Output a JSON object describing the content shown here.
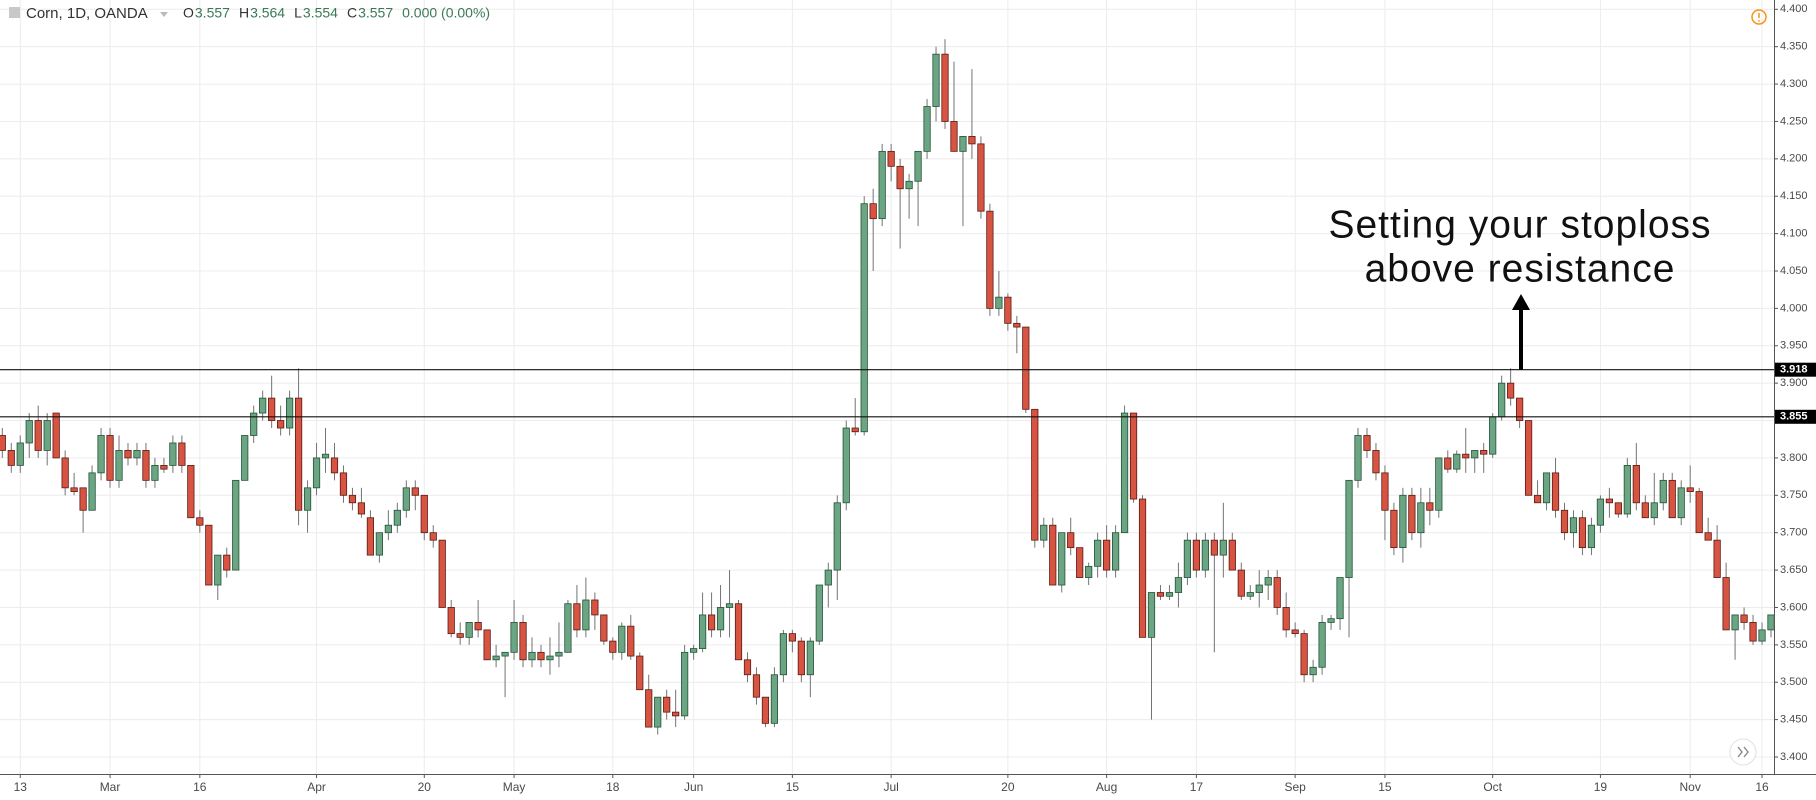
{
  "chart_data": {
    "type": "candlestick",
    "symbol": "Corn, 1D, OANDA",
    "legend": [
      {
        "key": "O",
        "value": "3.557"
      },
      {
        "key": "H",
        "value": "3.564"
      },
      {
        "key": "L",
        "value": "3.554"
      },
      {
        "key": "C",
        "value": "3.557"
      },
      {
        "key": "",
        "value": "0.000 (0.00%)"
      }
    ],
    "annotation": [
      "Setting your stoploss",
      "above resistance"
    ],
    "hlines": [
      3.918,
      3.855
    ],
    "up_color": "#6ba583",
    "down_color": "#d75442",
    "grid": true,
    "ylim": [
      3.4,
      4.4
    ],
    "yticks": [
      {
        "value": 3.4,
        "label": "3.400"
      },
      {
        "value": 3.45,
        "label": "3.450"
      },
      {
        "value": 3.5,
        "label": "3.500"
      },
      {
        "value": 3.55,
        "label": "3.550"
      },
      {
        "value": 3.6,
        "label": "3.600"
      },
      {
        "value": 3.65,
        "label": "3.650"
      },
      {
        "value": 3.7,
        "label": "3.700"
      },
      {
        "value": 3.75,
        "label": "3.750"
      },
      {
        "value": 3.8,
        "label": "3.800"
      },
      {
        "value": 3.85,
        "label": "3.850"
      },
      {
        "value": 3.9,
        "label": "3.900"
      },
      {
        "value": 3.95,
        "label": "3.950"
      },
      {
        "value": 4.0,
        "label": "4.000"
      },
      {
        "value": 4.05,
        "label": "4.050"
      },
      {
        "value": 4.1,
        "label": "4.100"
      },
      {
        "value": 4.15,
        "label": "4.150"
      },
      {
        "value": 4.2,
        "label": "4.200"
      },
      {
        "value": 4.25,
        "label": "4.250"
      },
      {
        "value": 4.3,
        "label": "4.300"
      },
      {
        "value": 4.35,
        "label": "4.350"
      },
      {
        "value": 4.4,
        "label": "4.400"
      }
    ],
    "xticks": [
      {
        "value": 2,
        "label": "13"
      },
      {
        "value": 12,
        "label": "Mar"
      },
      {
        "value": 22,
        "label": "16"
      },
      {
        "value": 35,
        "label": "Apr"
      },
      {
        "value": 47,
        "label": "20"
      },
      {
        "value": 57,
        "label": "May"
      },
      {
        "value": 68,
        "label": "18"
      },
      {
        "value": 77,
        "label": "Jun"
      },
      {
        "value": 88,
        "label": "15"
      },
      {
        "value": 99,
        "label": "Jul"
      },
      {
        "value": 112,
        "label": "20"
      },
      {
        "value": 123,
        "label": "Aug"
      },
      {
        "value": 133,
        "label": "17"
      },
      {
        "value": 144,
        "label": "Sep"
      },
      {
        "value": 154,
        "label": "15"
      },
      {
        "value": 166,
        "label": "Oct"
      },
      {
        "value": 178,
        "label": "19"
      },
      {
        "value": 188,
        "label": "Nov"
      },
      {
        "value": 196,
        "label": "16"
      }
    ],
    "candles": [
      [
        3.83,
        3.84,
        3.8,
        3.81
      ],
      [
        3.81,
        3.82,
        3.78,
        3.79
      ],
      [
        3.79,
        3.83,
        3.78,
        3.82
      ],
      [
        3.82,
        3.86,
        3.8,
        3.85
      ],
      [
        3.85,
        3.87,
        3.8,
        3.81
      ],
      [
        3.81,
        3.86,
        3.79,
        3.85
      ],
      [
        3.86,
        3.86,
        3.8,
        3.8
      ],
      [
        3.8,
        3.81,
        3.75,
        3.76
      ],
      [
        3.76,
        3.78,
        3.75,
        3.755
      ],
      [
        3.76,
        3.76,
        3.7,
        3.73
      ],
      [
        3.73,
        3.79,
        3.73,
        3.78
      ],
      [
        3.78,
        3.84,
        3.77,
        3.83
      ],
      [
        3.83,
        3.84,
        3.76,
        3.77
      ],
      [
        3.77,
        3.83,
        3.76,
        3.81
      ],
      [
        3.81,
        3.82,
        3.79,
        3.8
      ],
      [
        3.8,
        3.82,
        3.79,
        3.81
      ],
      [
        3.81,
        3.82,
        3.76,
        3.77
      ],
      [
        3.77,
        3.8,
        3.76,
        3.79
      ],
      [
        3.79,
        3.8,
        3.78,
        3.785
      ],
      [
        3.79,
        3.83,
        3.78,
        3.82
      ],
      [
        3.82,
        3.83,
        3.78,
        3.79
      ],
      [
        3.79,
        3.79,
        3.72,
        3.72
      ],
      [
        3.72,
        3.73,
        3.7,
        3.71
      ],
      [
        3.71,
        3.71,
        3.63,
        3.63
      ],
      [
        3.63,
        3.67,
        3.61,
        3.67
      ],
      [
        3.67,
        3.68,
        3.64,
        3.65
      ],
      [
        3.65,
        3.77,
        3.65,
        3.77
      ],
      [
        3.77,
        3.83,
        3.77,
        3.83
      ],
      [
        3.83,
        3.87,
        3.82,
        3.86
      ],
      [
        3.86,
        3.89,
        3.85,
        3.88
      ],
      [
        3.88,
        3.91,
        3.84,
        3.85
      ],
      [
        3.85,
        3.87,
        3.83,
        3.84
      ],
      [
        3.84,
        3.89,
        3.83,
        3.88
      ],
      [
        3.88,
        3.92,
        3.71,
        3.73
      ],
      [
        3.73,
        3.77,
        3.7,
        3.76
      ],
      [
        3.76,
        3.82,
        3.75,
        3.8
      ],
      [
        3.8,
        3.84,
        3.78,
        3.805
      ],
      [
        3.8,
        3.82,
        3.77,
        3.78
      ],
      [
        3.78,
        3.79,
        3.74,
        3.75
      ],
      [
        3.75,
        3.76,
        3.73,
        3.74
      ],
      [
        3.74,
        3.76,
        3.72,
        3.725
      ],
      [
        3.72,
        3.73,
        3.67,
        3.67
      ],
      [
        3.67,
        3.7,
        3.66,
        3.7
      ],
      [
        3.7,
        3.73,
        3.69,
        3.71
      ],
      [
        3.71,
        3.74,
        3.7,
        3.73
      ],
      [
        3.73,
        3.77,
        3.72,
        3.76
      ],
      [
        3.76,
        3.77,
        3.73,
        3.75
      ],
      [
        3.75,
        3.75,
        3.69,
        3.7
      ],
      [
        3.7,
        3.71,
        3.68,
        3.69
      ],
      [
        3.69,
        3.69,
        3.6,
        3.6
      ],
      [
        3.6,
        3.61,
        3.56,
        3.565
      ],
      [
        3.565,
        3.58,
        3.55,
        3.56
      ],
      [
        3.56,
        3.58,
        3.55,
        3.58
      ],
      [
        3.58,
        3.61,
        3.56,
        3.57
      ],
      [
        3.57,
        3.57,
        3.53,
        3.53
      ],
      [
        3.53,
        3.55,
        3.52,
        3.535
      ],
      [
        3.535,
        3.54,
        3.48,
        3.54
      ],
      [
        3.54,
        3.61,
        3.53,
        3.58
      ],
      [
        3.58,
        3.59,
        3.52,
        3.53
      ],
      [
        3.53,
        3.56,
        3.52,
        3.54
      ],
      [
        3.54,
        3.55,
        3.52,
        3.53
      ],
      [
        3.53,
        3.56,
        3.51,
        3.535
      ],
      [
        3.535,
        3.58,
        3.52,
        3.54
      ],
      [
        3.54,
        3.61,
        3.54,
        3.605
      ],
      [
        3.605,
        3.63,
        3.56,
        3.57
      ],
      [
        3.57,
        3.64,
        3.56,
        3.61
      ],
      [
        3.61,
        3.62,
        3.57,
        3.59
      ],
      [
        3.59,
        3.59,
        3.55,
        3.555
      ],
      [
        3.555,
        3.56,
        3.53,
        3.54
      ],
      [
        3.54,
        3.58,
        3.53,
        3.575
      ],
      [
        3.575,
        3.59,
        3.53,
        3.535
      ],
      [
        3.535,
        3.54,
        3.49,
        3.49
      ],
      [
        3.49,
        3.51,
        3.44,
        3.44
      ],
      [
        3.44,
        3.48,
        3.43,
        3.48
      ],
      [
        3.48,
        3.49,
        3.45,
        3.46
      ],
      [
        3.46,
        3.49,
        3.44,
        3.455
      ],
      [
        3.455,
        3.55,
        3.45,
        3.54
      ],
      [
        3.54,
        3.55,
        3.53,
        3.545
      ],
      [
        3.545,
        3.62,
        3.54,
        3.59
      ],
      [
        3.59,
        3.62,
        3.56,
        3.57
      ],
      [
        3.57,
        3.63,
        3.56,
        3.6
      ],
      [
        3.6,
        3.65,
        3.56,
        3.605
      ],
      [
        3.605,
        3.61,
        3.53,
        3.53
      ],
      [
        3.53,
        3.54,
        3.5,
        3.51
      ],
      [
        3.51,
        3.52,
        3.47,
        3.48
      ],
      [
        3.48,
        3.48,
        3.44,
        3.445
      ],
      [
        3.445,
        3.52,
        3.44,
        3.51
      ],
      [
        3.51,
        3.57,
        3.5,
        3.565
      ],
      [
        3.565,
        3.57,
        3.54,
        3.555
      ],
      [
        3.555,
        3.56,
        3.5,
        3.51
      ],
      [
        3.51,
        3.56,
        3.48,
        3.555
      ],
      [
        3.555,
        3.63,
        3.55,
        3.63
      ],
      [
        3.63,
        3.66,
        3.6,
        3.65
      ],
      [
        3.65,
        3.75,
        3.61,
        3.74
      ],
      [
        3.74,
        3.85,
        3.73,
        3.84
      ],
      [
        3.84,
        3.88,
        3.83,
        3.835
      ],
      [
        3.835,
        4.15,
        3.83,
        4.14
      ],
      [
        4.14,
        4.16,
        4.05,
        4.12
      ],
      [
        4.12,
        4.22,
        4.11,
        4.21
      ],
      [
        4.21,
        4.22,
        4.17,
        4.19
      ],
      [
        4.19,
        4.2,
        4.08,
        4.16
      ],
      [
        4.16,
        4.18,
        4.12,
        4.17
      ],
      [
        4.17,
        4.21,
        4.11,
        4.21
      ],
      [
        4.21,
        4.28,
        4.2,
        4.27
      ],
      [
        4.27,
        4.35,
        4.25,
        4.34
      ],
      [
        4.34,
        4.36,
        4.24,
        4.25
      ],
      [
        4.25,
        4.33,
        4.21,
        4.21
      ],
      [
        4.21,
        4.23,
        4.11,
        4.23
      ],
      [
        4.23,
        4.32,
        4.2,
        4.22
      ],
      [
        4.22,
        4.23,
        4.12,
        4.13
      ],
      [
        4.13,
        4.14,
        3.99,
        4.0
      ],
      [
        4.0,
        4.05,
        3.99,
        4.015
      ],
      [
        4.015,
        4.02,
        3.97,
        3.98
      ],
      [
        3.98,
        3.99,
        3.94,
        3.975
      ],
      [
        3.975,
        3.975,
        3.86,
        3.865
      ],
      [
        3.865,
        3.865,
        3.68,
        3.69
      ],
      [
        3.69,
        3.72,
        3.68,
        3.71
      ],
      [
        3.71,
        3.72,
        3.63,
        3.63
      ],
      [
        3.63,
        3.7,
        3.62,
        3.7
      ],
      [
        3.7,
        3.72,
        3.67,
        3.68
      ],
      [
        3.68,
        3.68,
        3.64,
        3.64
      ],
      [
        3.64,
        3.66,
        3.63,
        3.655
      ],
      [
        3.655,
        3.7,
        3.64,
        3.69
      ],
      [
        3.69,
        3.71,
        3.64,
        3.65
      ],
      [
        3.65,
        3.71,
        3.64,
        3.7
      ],
      [
        3.7,
        3.87,
        3.7,
        3.86
      ],
      [
        3.86,
        3.86,
        3.74,
        3.745
      ],
      [
        3.745,
        3.75,
        3.56,
        3.56
      ],
      [
        3.56,
        3.62,
        3.45,
        3.62
      ],
      [
        3.62,
        3.63,
        3.61,
        3.615
      ],
      [
        3.615,
        3.63,
        3.61,
        3.62
      ],
      [
        3.62,
        3.66,
        3.6,
        3.64
      ],
      [
        3.64,
        3.7,
        3.63,
        3.69
      ],
      [
        3.69,
        3.7,
        3.64,
        3.65
      ],
      [
        3.65,
        3.7,
        3.64,
        3.69
      ],
      [
        3.69,
        3.7,
        3.54,
        3.67
      ],
      [
        3.67,
        3.74,
        3.64,
        3.69
      ],
      [
        3.69,
        3.7,
        3.65,
        3.65
      ],
      [
        3.65,
        3.66,
        3.61,
        3.615
      ],
      [
        3.615,
        3.63,
        3.61,
        3.62
      ],
      [
        3.62,
        3.65,
        3.6,
        3.63
      ],
      [
        3.63,
        3.65,
        3.61,
        3.64
      ],
      [
        3.64,
        3.65,
        3.59,
        3.6
      ],
      [
        3.6,
        3.62,
        3.56,
        3.57
      ],
      [
        3.57,
        3.58,
        3.56,
        3.565
      ],
      [
        3.565,
        3.57,
        3.5,
        3.51
      ],
      [
        3.51,
        3.53,
        3.5,
        3.52
      ],
      [
        3.52,
        3.59,
        3.51,
        3.58
      ],
      [
        3.58,
        3.59,
        3.57,
        3.585
      ],
      [
        3.585,
        3.64,
        3.57,
        3.64
      ],
      [
        3.64,
        3.77,
        3.56,
        3.77
      ],
      [
        3.77,
        3.84,
        3.76,
        3.83
      ],
      [
        3.83,
        3.84,
        3.8,
        3.81
      ],
      [
        3.81,
        3.82,
        3.77,
        3.78
      ],
      [
        3.78,
        3.79,
        3.69,
        3.73
      ],
      [
        3.73,
        3.74,
        3.67,
        3.68
      ],
      [
        3.68,
        3.76,
        3.66,
        3.75
      ],
      [
        3.75,
        3.76,
        3.69,
        3.7
      ],
      [
        3.7,
        3.76,
        3.68,
        3.74
      ],
      [
        3.74,
        3.76,
        3.71,
        3.73
      ],
      [
        3.73,
        3.8,
        3.72,
        3.8
      ],
      [
        3.8,
        3.81,
        3.78,
        3.785
      ],
      [
        3.785,
        3.81,
        3.78,
        3.805
      ],
      [
        3.805,
        3.84,
        3.78,
        3.8
      ],
      [
        3.8,
        3.81,
        3.78,
        3.81
      ],
      [
        3.81,
        3.82,
        3.78,
        3.805
      ],
      [
        3.805,
        3.86,
        3.8,
        3.855
      ],
      [
        3.855,
        3.91,
        3.85,
        3.9
      ],
      [
        3.9,
        3.92,
        3.87,
        3.88
      ],
      [
        3.88,
        3.88,
        3.84,
        3.85
      ],
      [
        3.85,
        3.85,
        3.75,
        3.75
      ],
      [
        3.75,
        3.77,
        3.74,
        3.74
      ],
      [
        3.74,
        3.78,
        3.73,
        3.78
      ],
      [
        3.78,
        3.8,
        3.72,
        3.73
      ],
      [
        3.73,
        3.74,
        3.69,
        3.7
      ],
      [
        3.7,
        3.73,
        3.68,
        3.72
      ],
      [
        3.72,
        3.73,
        3.67,
        3.68
      ],
      [
        3.68,
        3.72,
        3.67,
        3.71
      ],
      [
        3.71,
        3.75,
        3.7,
        3.745
      ],
      [
        3.745,
        3.76,
        3.72,
        3.74
      ],
      [
        3.74,
        3.74,
        3.72,
        3.725
      ],
      [
        3.725,
        3.8,
        3.72,
        3.79
      ],
      [
        3.79,
        3.82,
        3.73,
        3.74
      ],
      [
        3.74,
        3.75,
        3.72,
        3.72
      ],
      [
        3.72,
        3.78,
        3.71,
        3.74
      ],
      [
        3.74,
        3.78,
        3.73,
        3.77
      ],
      [
        3.77,
        3.78,
        3.72,
        3.72
      ],
      [
        3.72,
        3.77,
        3.71,
        3.76
      ],
      [
        3.76,
        3.79,
        3.74,
        3.755
      ],
      [
        3.755,
        3.76,
        3.7,
        3.7
      ],
      [
        3.7,
        3.72,
        3.69,
        3.69
      ],
      [
        3.69,
        3.71,
        3.64,
        3.64
      ],
      [
        3.64,
        3.66,
        3.57,
        3.57
      ],
      [
        3.57,
        3.59,
        3.53,
        3.59
      ],
      [
        3.59,
        3.6,
        3.57,
        3.58
      ],
      [
        3.58,
        3.59,
        3.55,
        3.555
      ],
      [
        3.555,
        3.58,
        3.55,
        3.57
      ],
      [
        3.57,
        3.59,
        3.56,
        3.59
      ]
    ]
  }
}
